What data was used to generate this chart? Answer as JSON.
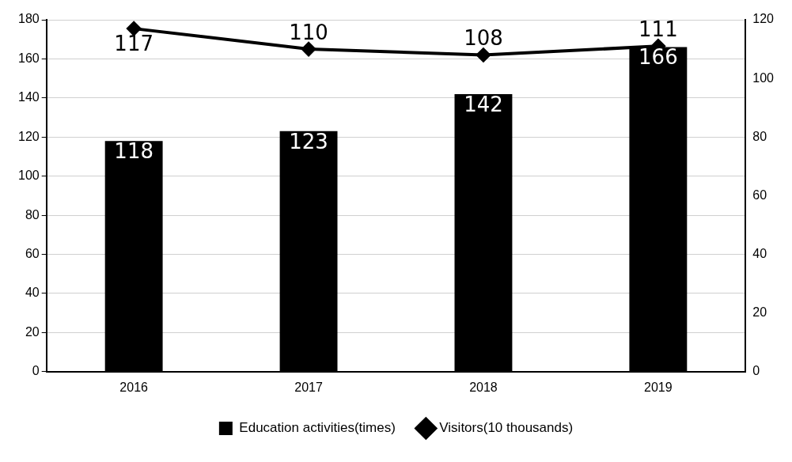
{
  "chart_data": {
    "type": "bar",
    "categories": [
      "2016",
      "2017",
      "2018",
      "2019"
    ],
    "series": [
      {
        "name": "Education activities(times)",
        "color": "#000000",
        "values": [
          118,
          123,
          142,
          166
        ]
      },
      {
        "name": "Visitors(10 thousands)",
        "type": "line",
        "axis": "y2",
        "color": "#000000",
        "values": [
          117,
          110,
          108,
          111
        ]
      }
    ],
    "ylim": [
      0,
      180
    ],
    "yticks": [
      0,
      20,
      40,
      60,
      80,
      100,
      120,
      140,
      160,
      180
    ],
    "y2lim": [
      0,
      120
    ],
    "y2ticks": [
      0,
      20,
      40,
      60,
      80,
      100,
      120
    ],
    "data_labels": true,
    "grid": "y",
    "legend": "bottom",
    "marker": "diamond",
    "line_style": "solid"
  }
}
